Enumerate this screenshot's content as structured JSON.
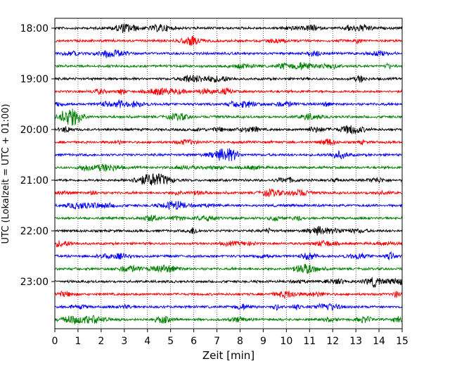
{
  "chart_data": {
    "type": "line",
    "title": "",
    "xlabel": "Zeit  [min]",
    "ylabel": "UTC (Lokalzeit = UTC + 01:00)",
    "xlim": [
      0,
      15
    ],
    "x_ticks": [
      "0",
      "1",
      "2",
      "3",
      "4",
      "5",
      "6",
      "7",
      "8",
      "9",
      "10",
      "11",
      "12",
      "13",
      "14",
      "15"
    ],
    "y_tick_labels": [
      "18:00",
      "19:00",
      "20:00",
      "21:00",
      "22:00",
      "23:00"
    ],
    "grid": "vertical dotted",
    "legend": "none",
    "trace_colors": [
      "#000000",
      "#ff0000",
      "#0000ff",
      "#008000"
    ],
    "rows": [
      {
        "time": "18:00",
        "color": "#000000"
      },
      {
        "time": "18:15",
        "color": "#ff0000"
      },
      {
        "time": "18:30",
        "color": "#0000ff"
      },
      {
        "time": "18:45",
        "color": "#008000"
      },
      {
        "time": "19:00",
        "color": "#000000"
      },
      {
        "time": "19:15",
        "color": "#ff0000"
      },
      {
        "time": "19:30",
        "color": "#0000ff"
      },
      {
        "time": "19:45",
        "color": "#008000"
      },
      {
        "time": "20:00",
        "color": "#000000"
      },
      {
        "time": "20:15",
        "color": "#ff0000"
      },
      {
        "time": "20:30",
        "color": "#0000ff"
      },
      {
        "time": "20:45",
        "color": "#008000"
      },
      {
        "time": "21:00",
        "color": "#000000"
      },
      {
        "time": "21:15",
        "color": "#ff0000"
      },
      {
        "time": "21:30",
        "color": "#0000ff"
      },
      {
        "time": "21:45",
        "color": "#008000"
      },
      {
        "time": "22:00",
        "color": "#000000"
      },
      {
        "time": "22:15",
        "color": "#ff0000"
      },
      {
        "time": "22:30",
        "color": "#0000ff"
      },
      {
        "time": "22:45",
        "color": "#008000"
      },
      {
        "time": "23:00",
        "color": "#000000"
      },
      {
        "time": "23:15",
        "color": "#ff0000"
      },
      {
        "time": "23:30",
        "color": "#0000ff"
      },
      {
        "time": "23:45",
        "color": "#008000"
      }
    ]
  }
}
